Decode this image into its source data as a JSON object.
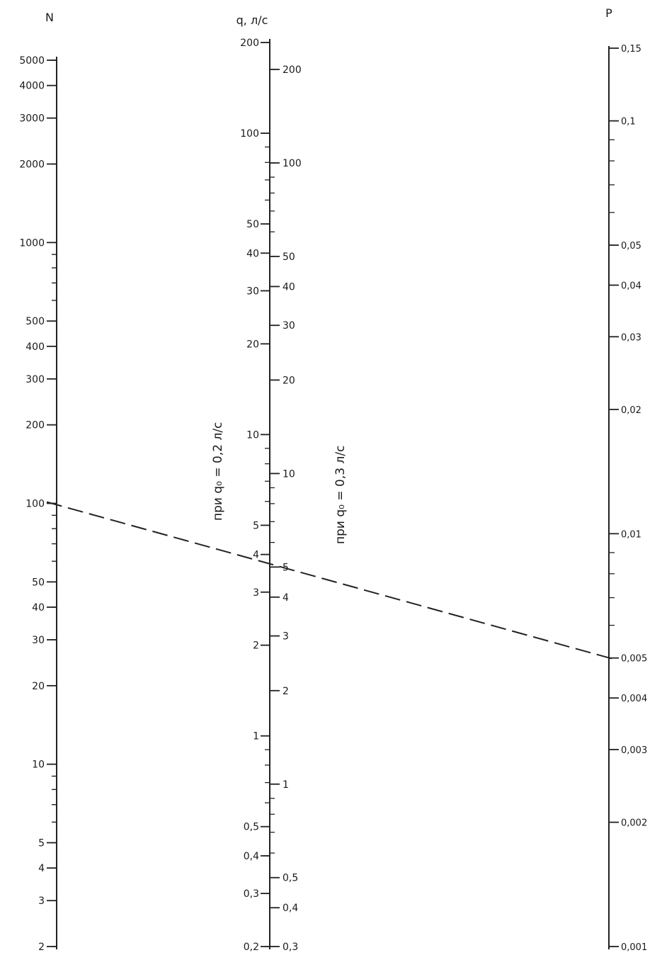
{
  "axes": {
    "n": {
      "title": "N",
      "range": [
        2,
        5000
      ],
      "labels": [
        "5000",
        "4000",
        "3000",
        "2000",
        "1000",
        "500",
        "400",
        "300",
        "200",
        "100",
        "50",
        "40",
        "30",
        "20",
        "10",
        "5",
        "4",
        "3",
        "2"
      ],
      "label_values": [
        5000,
        4000,
        3000,
        2000,
        1000,
        500,
        400,
        300,
        200,
        100,
        50,
        40,
        30,
        20,
        10,
        5,
        4,
        3,
        2
      ]
    },
    "q": {
      "title": "q, л/с",
      "left_range": [
        0.2,
        200
      ],
      "left_labels": [
        "200",
        "100",
        "50",
        "40",
        "30",
        "20",
        "10",
        "5",
        "4",
        "3",
        "2",
        "1",
        "0,5",
        "0,4",
        "0,3",
        "0,2"
      ],
      "left_values": [
        200,
        100,
        50,
        40,
        30,
        20,
        10,
        5,
        4,
        3,
        2,
        1,
        0.5,
        0.4,
        0.3,
        0.2
      ],
      "right_range": [
        0.3,
        300
      ],
      "right_labels": [
        "200",
        "100",
        "50",
        "40",
        "30",
        "20",
        "10",
        "5",
        "4",
        "3",
        "2",
        "1",
        "0,5",
        "0,4",
        "0,3"
      ],
      "right_values": [
        200,
        100,
        50,
        40,
        30,
        20,
        10,
        5,
        4,
        3,
        2,
        1,
        0.5,
        0.4,
        0.3
      ],
      "note_left": "при q₀ = 0,2 л/с",
      "note_right": "при q₀ = 0,3 л/с"
    },
    "p": {
      "title": "P",
      "range": [
        0.001,
        0.15
      ],
      "labels": [
        "0,15",
        "0,1",
        "0,05",
        "0,04",
        "0,03",
        "0,02",
        "0,01",
        "0,005",
        "0,004",
        "0,003",
        "0,002",
        "0,001"
      ],
      "label_values": [
        0.15,
        0.1,
        0.05,
        0.04,
        0.03,
        0.02,
        0.01,
        0.005,
        0.004,
        0.003,
        0.002,
        0.001
      ]
    }
  },
  "example_line": {
    "n_value": 100,
    "p_value": 0.005
  }
}
